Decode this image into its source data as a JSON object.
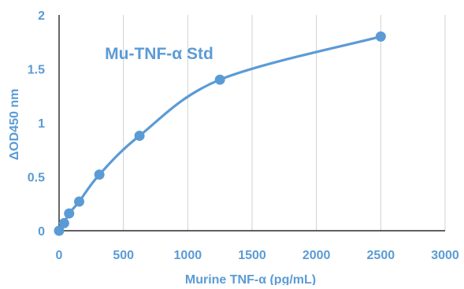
{
  "chart_data": {
    "type": "scatter",
    "title": "Mu-TNF-α Std",
    "xlabel": "Murine TNF-α (pg/mL)",
    "ylabel": "ΔOD450 nm",
    "xlim": [
      0,
      3000
    ],
    "ylim": [
      0,
      2
    ],
    "x_ticks": [
      0,
      500,
      1000,
      1500,
      2000,
      2500,
      3000
    ],
    "y_ticks": [
      0,
      0.5,
      1,
      1.5,
      2
    ],
    "x_tick_labels": [
      "0",
      "500",
      "1000",
      "1500",
      "2000",
      "2500",
      "3000"
    ],
    "y_tick_labels": [
      "0",
      "0.5",
      "1",
      "1.5",
      "2"
    ],
    "grid": "vertical",
    "legend": "none",
    "series": [
      {
        "x": [
          0,
          39,
          78,
          156,
          313,
          625,
          1250,
          2500
        ],
        "y": [
          0,
          0.07,
          0.16,
          0.27,
          0.52,
          0.88,
          1.4,
          1.8
        ],
        "smooth_line": true
      }
    ],
    "colors": {
      "series": "#5B9BD5",
      "text": "#5B9BD5",
      "grid": "#D0D0D0",
      "axis": "#000000"
    }
  }
}
